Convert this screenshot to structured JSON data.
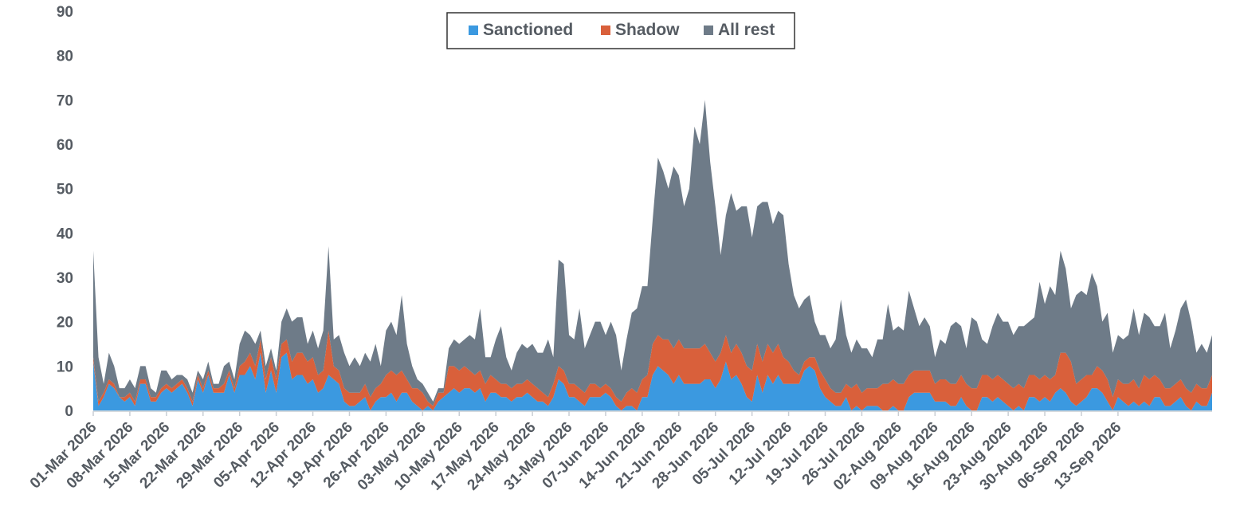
{
  "chart_data": {
    "type": "area",
    "stacked": true,
    "xlabel": "",
    "ylabel": "",
    "ylim": [
      0,
      90
    ],
    "yticks": [
      "0",
      "10",
      "20",
      "30",
      "40",
      "50",
      "60",
      "70",
      "80",
      "90"
    ],
    "grid": false,
    "legend_position": "top-center",
    "x_start": "01-Mar-2026",
    "x_end": "15-Sep-2026",
    "x_tick_labels": [
      "01-Mar 2026",
      "08-Mar 2026",
      "15-Mar 2026",
      "22-Mar 2026",
      "29-Mar 2026",
      "05-Apr 2026",
      "12-Apr 2026",
      "19-Apr 2026",
      "26-Apr 2026",
      "03-May 2026",
      "10-May 2026",
      "17-May 2026",
      "24-May 2026",
      "31-May 2026",
      "07-Jun 2026",
      "14-Jun 2026",
      "21-Jun 2026",
      "28-Jun 2026",
      "05-Jul 2026",
      "12-Jul 2026",
      "19-Jul 2026",
      "26-Jul 2026",
      "02-Aug 2026",
      "09-Aug 2026",
      "16-Aug 2026",
      "23-Aug 2026",
      "30-Aug 2026",
      "06-Sep 2026",
      "13-Sep 2026"
    ],
    "series": [
      {
        "name": "Sanctioned",
        "color": "#3b99e0",
        "values": [
          11,
          1,
          3,
          6,
          5,
          3,
          2,
          3,
          1,
          6,
          6,
          2,
          2,
          4,
          5,
          4,
          5,
          6,
          4,
          1,
          7,
          4,
          8,
          4,
          4,
          4,
          8,
          4,
          8,
          8,
          10,
          7,
          13,
          4,
          9,
          4,
          12,
          13,
          7,
          8,
          8,
          6,
          7,
          4,
          5,
          8,
          7,
          6,
          2,
          1,
          1,
          2,
          3,
          0,
          2,
          3,
          3,
          4,
          2,
          4,
          4,
          2,
          1,
          0,
          1,
          0,
          2,
          3,
          4,
          5,
          4,
          5,
          5,
          4,
          5,
          2,
          4,
          4,
          3,
          3,
          2,
          3,
          3,
          4,
          3,
          2,
          2,
          1,
          3,
          7,
          6,
          3,
          3,
          2,
          1,
          3,
          3,
          3,
          4,
          3,
          1,
          0,
          1,
          1,
          0,
          3,
          3,
          8,
          10,
          9,
          8,
          6,
          8,
          6,
          6,
          6,
          6,
          7,
          7,
          5,
          7,
          11,
          7,
          8,
          6,
          3,
          2,
          8,
          4,
          8,
          6,
          8,
          6,
          6,
          6,
          6,
          9,
          10,
          9,
          5,
          3,
          2,
          1,
          1,
          3,
          0,
          1,
          0,
          1,
          1,
          1,
          0,
          0,
          1,
          0,
          0,
          3,
          4,
          4,
          4,
          4,
          2,
          2,
          2,
          1,
          1,
          3,
          1,
          0,
          0,
          3,
          3,
          2,
          3,
          2,
          1,
          0,
          1,
          0,
          3,
          3,
          2,
          3,
          2,
          4,
          5,
          4,
          2,
          1,
          2,
          3,
          5,
          5,
          4,
          2,
          0,
          3,
          2,
          1,
          2,
          1,
          2,
          1,
          3,
          3,
          1,
          1,
          2,
          3,
          1,
          0,
          2,
          1,
          1,
          4
        ],
        "start_index": 0
      },
      {
        "name": "Shadow",
        "color": "#d9603b",
        "values": [
          1,
          1,
          1,
          1,
          1,
          0,
          1,
          1,
          1,
          1,
          1,
          1,
          1,
          1,
          1,
          1,
          1,
          1,
          1,
          1,
          1,
          1,
          1,
          1,
          1,
          2,
          1,
          1,
          2,
          3,
          3,
          3,
          3,
          3,
          3,
          3,
          3,
          3,
          4,
          5,
          5,
          5,
          5,
          4,
          4,
          10,
          3,
          3,
          3,
          3,
          3,
          2,
          3,
          3,
          3,
          3,
          5,
          5,
          6,
          5,
          3,
          3,
          4,
          4,
          1,
          1,
          2,
          1,
          6,
          5,
          5,
          5,
          4,
          4,
          4,
          4,
          4,
          3,
          3,
          3,
          3,
          3,
          3,
          3,
          3,
          3,
          2,
          2,
          3,
          3,
          3,
          3,
          3,
          3,
          3,
          3,
          3,
          2,
          2,
          2,
          2,
          2,
          3,
          4,
          4,
          4,
          5,
          7,
          7,
          7,
          8,
          8,
          8,
          8,
          8,
          8,
          8,
          8,
          6,
          6,
          6,
          6,
          6,
          7,
          7,
          7,
          7,
          7,
          7,
          7,
          7,
          7,
          6,
          5,
          3,
          2,
          2,
          2,
          3,
          4,
          4,
          3,
          3,
          3,
          3,
          5,
          5,
          4,
          4,
          4,
          4,
          6,
          6,
          6,
          6,
          6,
          5,
          5,
          5,
          5,
          5,
          4,
          5,
          5,
          5,
          5,
          5,
          5,
          5,
          5,
          5,
          5,
          5,
          5,
          5,
          5,
          5,
          5,
          5,
          5,
          5,
          5,
          5,
          5,
          4,
          8,
          9,
          9,
          5,
          5,
          5,
          3,
          5,
          5,
          5,
          3,
          4,
          4,
          5,
          5,
          4,
          6,
          6,
          5,
          4,
          4,
          4,
          4,
          4,
          4,
          4,
          4,
          4,
          4,
          4
        ],
        "start_index": 0
      },
      {
        "name": "All rest",
        "color": "#6e7b88",
        "values": [
          24,
          10,
          2,
          6,
          4,
          2,
          2,
          3,
          3,
          3,
          3,
          2,
          1,
          4,
          3,
          2,
          2,
          1,
          2,
          2,
          1,
          2,
          2,
          1,
          1,
          4,
          2,
          2,
          5,
          7,
          4,
          5,
          2,
          3,
          2,
          2,
          5,
          7,
          9,
          8,
          8,
          4,
          6,
          6,
          9,
          19,
          6,
          8,
          8,
          6,
          8,
          6,
          7,
          8,
          10,
          4,
          10,
          11,
          9,
          17,
          8,
          5,
          2,
          2,
          2,
          1,
          1,
          1,
          4,
          6,
          6,
          6,
          8,
          8,
          14,
          6,
          4,
          9,
          13,
          6,
          4,
          7,
          9,
          7,
          9,
          8,
          9,
          13,
          6,
          24,
          24,
          11,
          10,
          18,
          10,
          11,
          14,
          15,
          11,
          15,
          14,
          7,
          12,
          17,
          19,
          21,
          20,
          28,
          40,
          38,
          34,
          41,
          37,
          32,
          36,
          50,
          46,
          55,
          43,
          35,
          22,
          27,
          36,
          30,
          33,
          36,
          30,
          31,
          36,
          32,
          29,
          30,
          32,
          22,
          17,
          15,
          14,
          14,
          8,
          8,
          10,
          9,
          12,
          21,
          11,
          8,
          10,
          10,
          9,
          7,
          11,
          10,
          18,
          11,
          13,
          12,
          19,
          14,
          10,
          12,
          10,
          6,
          9,
          8,
          13,
          14,
          11,
          8,
          16,
          15,
          8,
          7,
          12,
          14,
          13,
          14,
          12,
          13,
          14,
          12,
          13,
          22,
          16,
          21,
          18,
          23,
          19,
          12,
          20,
          20,
          18,
          23,
          18,
          11,
          15,
          10,
          10,
          10,
          11,
          16,
          12,
          14,
          14,
          11,
          12,
          17,
          9,
          12,
          16,
          20,
          16,
          7,
          10,
          8,
          9
        ],
        "start_index": 0
      }
    ]
  }
}
